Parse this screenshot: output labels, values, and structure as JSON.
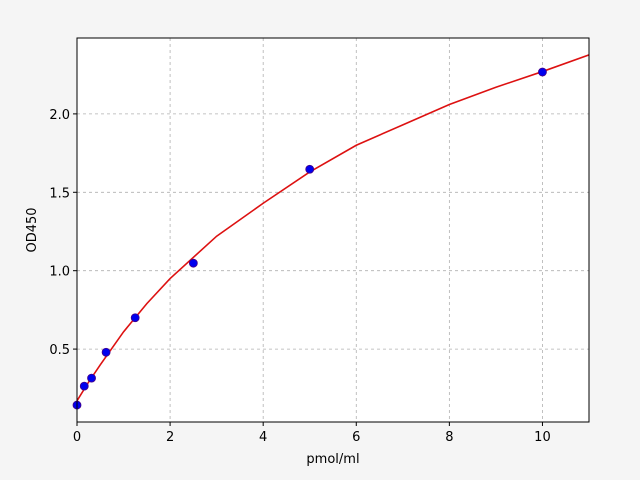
{
  "chart_data": {
    "type": "scatter",
    "xlabel": "pmol/ml",
    "ylabel": "OD450",
    "xlim": [
      0,
      11
    ],
    "ylim": [
      0.035,
      2.484
    ],
    "xticks": [
      0,
      2,
      4,
      6,
      8,
      10
    ],
    "yticks": [
      0.5,
      {
        "value": 1,
        "label": "1.0"
      },
      1.5,
      {
        "value": 2,
        "label": "2.0"
      }
    ],
    "grid": true,
    "series": [
      {
        "type": "scatter",
        "color": "#0000ee",
        "x": [
          0,
          0.156,
          0.3125,
          0.625,
          1.25,
          2.5,
          5,
          10
        ],
        "values": [
          0.143,
          0.264,
          0.315,
          0.48,
          0.7,
          1.048,
          1.647,
          2.267
        ]
      },
      {
        "type": "line",
        "color": "#dd1111",
        "x": [
          0,
          0.25,
          0.5,
          1,
          1.5,
          2,
          3,
          4,
          5,
          6,
          7,
          8,
          9,
          10,
          11
        ],
        "values": [
          0.17,
          0.29,
          0.4,
          0.61,
          0.79,
          0.95,
          1.22,
          1.43,
          1.63,
          1.8,
          1.93,
          2.06,
          2.17,
          2.27,
          2.376
        ]
      }
    ]
  }
}
